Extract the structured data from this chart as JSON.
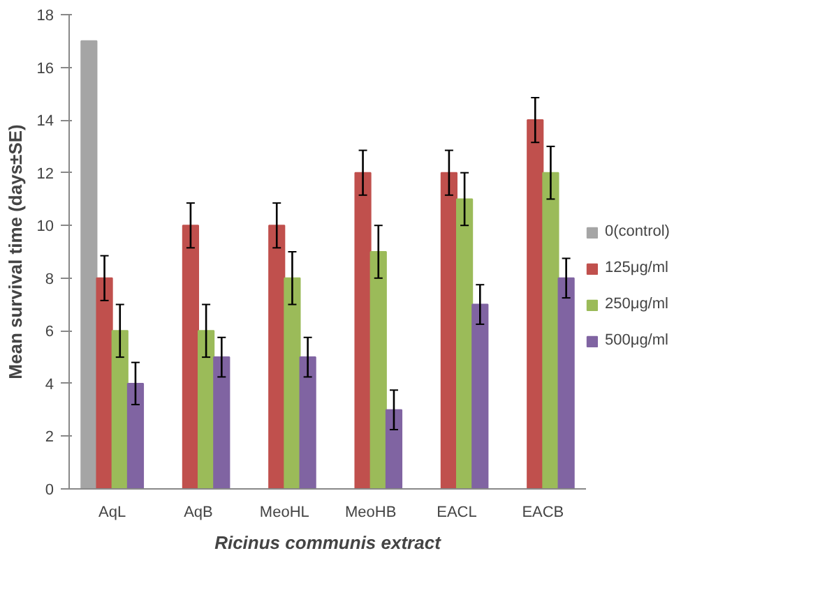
{
  "chart_data": {
    "type": "bar",
    "xlabel": "Ricinus communis extract",
    "ylabel": "Mean survival time (days±SE)",
    "categories": [
      "AqL",
      "AqB",
      "MeoHL",
      "MeoHB",
      "EACL",
      "EACB"
    ],
    "series": [
      {
        "name": "0(control)",
        "color": "#a5a5a5",
        "values": [
          17,
          null,
          null,
          null,
          null,
          null
        ]
      },
      {
        "name": "125μg/ml",
        "color": "#c0504d",
        "values": [
          8,
          10,
          10,
          12,
          12,
          14
        ],
        "errors": [
          0.85,
          0.85,
          0.85,
          0.85,
          0.85,
          0.85
        ]
      },
      {
        "name": "250μg/ml",
        "color": "#9bbb59",
        "values": [
          6,
          6,
          8,
          9,
          11,
          12
        ],
        "errors": [
          1,
          1,
          1,
          1,
          1,
          1
        ]
      },
      {
        "name": "500μg/ml",
        "color": "#8064a2",
        "values": [
          4,
          5,
          5,
          3,
          7,
          8
        ],
        "errors": [
          0.8,
          0.75,
          0.75,
          0.75,
          0.75,
          0.75
        ]
      }
    ],
    "ylim": [
      0,
      18
    ],
    "yticks": [
      0,
      2,
      4,
      6,
      8,
      10,
      12,
      14,
      16,
      18
    ],
    "grid": false,
    "legend": "right"
  }
}
